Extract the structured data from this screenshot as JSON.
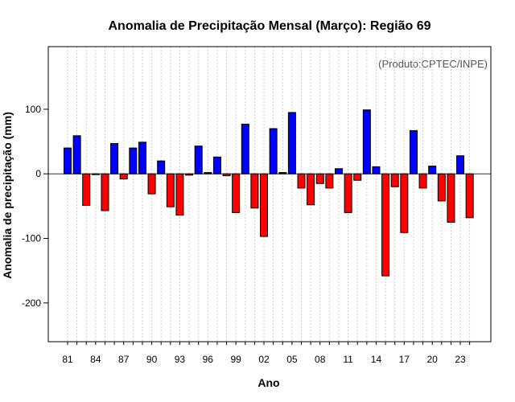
{
  "chart_data": {
    "type": "bar",
    "title": "Anomalia de Precipitação Mensal (Março): Região 69",
    "xlabel": "Ano",
    "ylabel": "Anomalia de precipitação (mm)",
    "credit": "(Produto:CPTEC/INPE)",
    "ylim": [
      -260,
      197
    ],
    "yticks": [
      100,
      0,
      -100,
      -200
    ],
    "grid": true,
    "positive_color": "#0000ff",
    "negative_color": "#ff0000",
    "years": [
      1981,
      1982,
      1983,
      1984,
      1985,
      1986,
      1987,
      1988,
      1989,
      1990,
      1991,
      1992,
      1993,
      1994,
      1995,
      1996,
      1997,
      1998,
      1999,
      2000,
      2001,
      2002,
      2003,
      2004,
      2005,
      2006,
      2007,
      2008,
      2009,
      2010,
      2011,
      2012,
      2013,
      2014,
      2015,
      2016,
      2017,
      2018,
      2019,
      2020,
      2021,
      2022,
      2023,
      2024
    ],
    "values": [
      40,
      59,
      -49,
      -1,
      -57,
      47,
      -8,
      40,
      49,
      -31,
      20,
      -51,
      -64,
      -2,
      43,
      2,
      26,
      -3,
      -60,
      77,
      -53,
      -97,
      70,
      2,
      95,
      -22,
      -48,
      -15,
      -22,
      8,
      -60,
      -10,
      99,
      11,
      -158,
      -20,
      -91,
      67,
      -22,
      12,
      -42,
      -75,
      28,
      -68
    ],
    "tick_labels": [
      "81",
      "84",
      "87",
      "90",
      "93",
      "96",
      "99",
      "02",
      "05",
      "08",
      "11",
      "14",
      "17",
      "20",
      "23"
    ],
    "tick_years": [
      1981,
      1984,
      1987,
      1990,
      1993,
      1996,
      1999,
      2002,
      2005,
      2008,
      2011,
      2014,
      2017,
      2020,
      2023
    ]
  }
}
